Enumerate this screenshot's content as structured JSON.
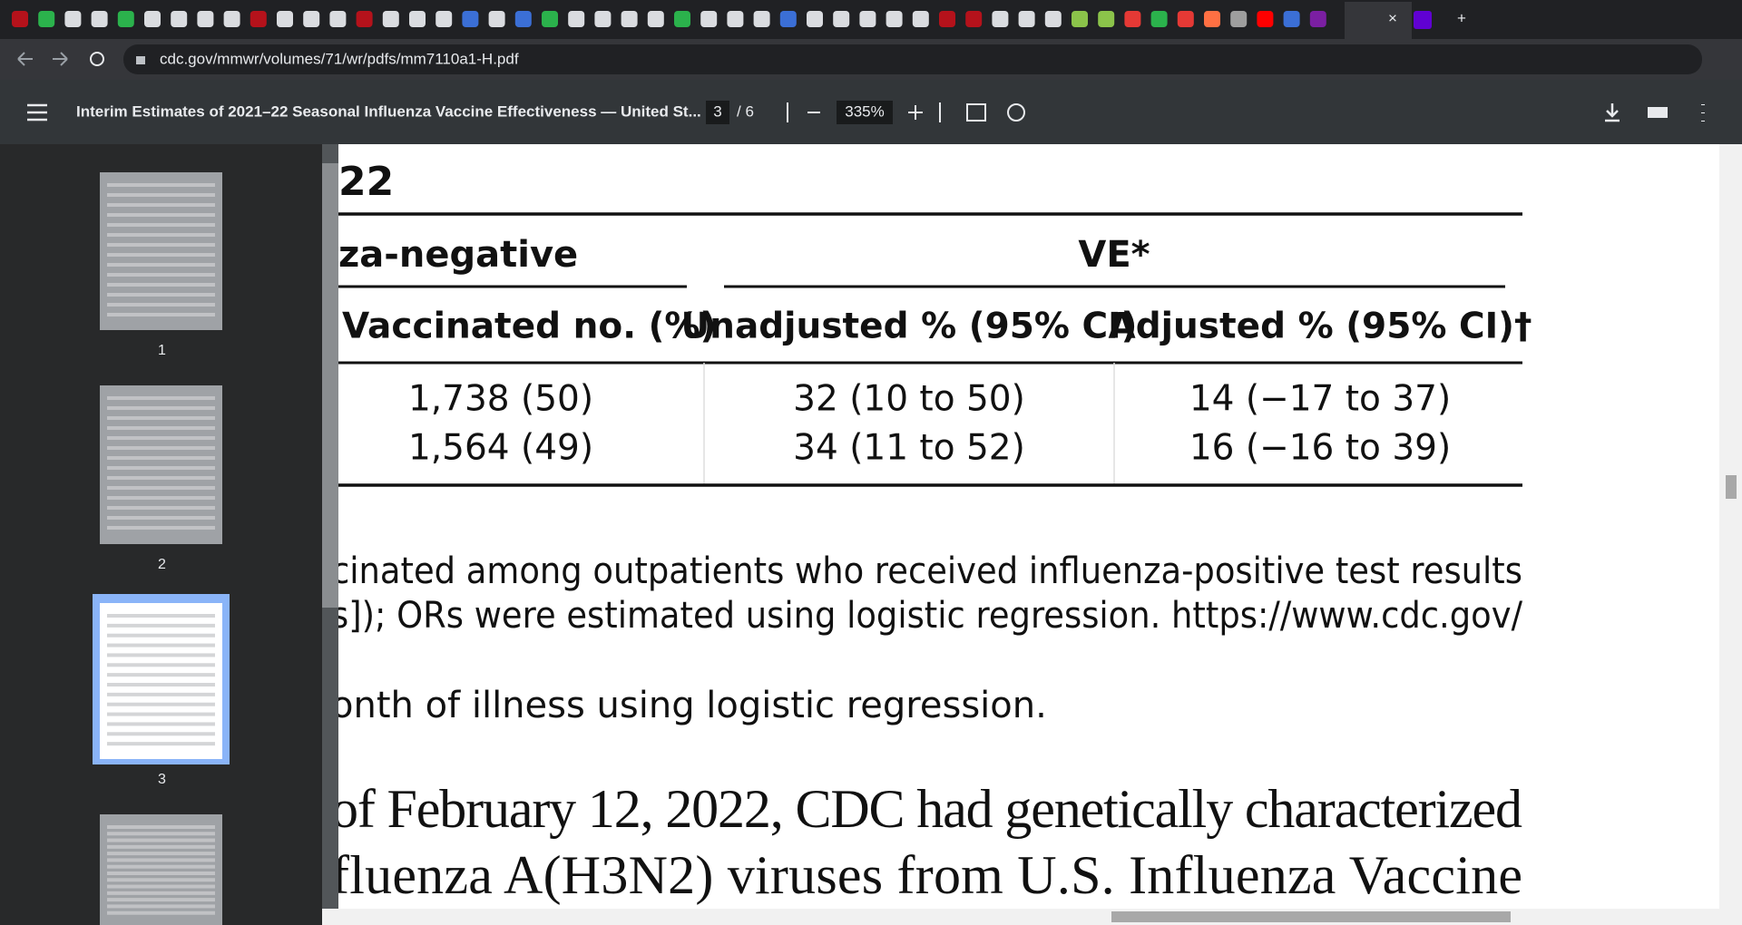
{
  "browser": {
    "new_tab": "+",
    "close_tab": "×",
    "url": "cdc.gov/mmwr/volumes/71/wr/pdfs/mm7110a1-H.pdf"
  },
  "pdf_toolbar": {
    "title": "Interim Estimates of 2021–22 Seasonal Influenza Vaccine Effectiveness — United St...",
    "page": "3",
    "page_total": "/ 6",
    "zoom": "335%"
  },
  "thumbnails": [
    "1",
    "2",
    "3"
  ],
  "document": {
    "title_fragment": "22",
    "table": {
      "group_left": "za-negative",
      "group_right": "VE*",
      "headers": [
        "Vaccinated no. (%)",
        "Unadjusted % (95% CI)",
        "Adjusted % (95% CI)†"
      ],
      "rows": [
        [
          "1,738 (50)",
          "32 (10 to 50)",
          "14 (−17 to 37)"
        ],
        [
          "1,564 (49)",
          "34 (11 to 52)",
          "16 (−16 to 39)"
        ]
      ]
    },
    "footnotes": [
      "cinated among outpatients who received influenza-positive test results",
      "s]); ORs were estimated using logistic regression. https://www.cdc.gov/",
      "onth of illness using logistic regression."
    ],
    "body": [
      "of February 12, 2022, CDC had genetically characterized",
      "fluenza A(H3N2) viruses from U.S. Influenza Vaccine"
    ]
  }
}
